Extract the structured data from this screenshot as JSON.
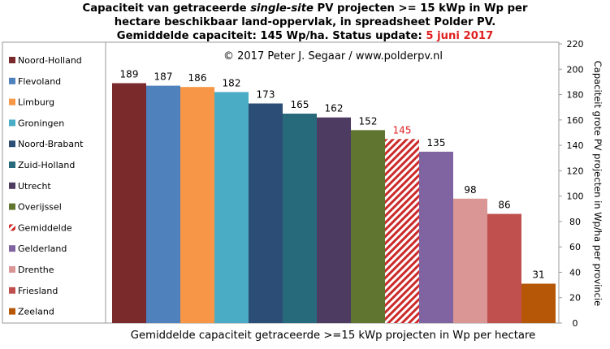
{
  "chart_data": {
    "type": "bar",
    "title": {
      "line1_pre": "Capaciteit van getraceerde ",
      "line1_em": "single-site",
      "line1_post": " PV projecten >= 15 kWp in Wp per",
      "line2": "hectare beschikbaar land-oppervlak, in spreadsheet Polder PV.",
      "line3_pre": "Gemiddelde capaciteit: 145 Wp/ha. Status update: ",
      "line3_date": "5 juni 2017"
    },
    "annotation": "© 2017 Peter J. Segaar / www.polderpv.nl",
    "xlabel": "Gemiddelde capaciteit getraceerde >=15 kWp projecten in Wp per hectare",
    "ylabel": "Capaciteit grote PV projecten in Wp/ha per provincie",
    "ylim": [
      0,
      220
    ],
    "yticks": [
      0,
      20,
      40,
      60,
      80,
      100,
      120,
      140,
      160,
      180,
      200,
      220
    ],
    "categories": [
      "Noord-Holland",
      "Flevoland",
      "Limburg",
      "Groningen",
      "Noord-Brabant",
      "Zuid-Holland",
      "Utrecht",
      "Overijssel",
      "Gemiddelde",
      "Gelderland",
      "Drenthe",
      "Friesland",
      "Zeeland"
    ],
    "values": [
      189,
      187,
      186,
      182,
      173,
      165,
      162,
      152,
      145,
      135,
      98,
      86,
      31
    ],
    "colors": [
      "#7b2a2c",
      "#4f81bd",
      "#f79646",
      "#4bacc6",
      "#2c4d75",
      "#276a7c",
      "#4e3b62",
      "#5f7530",
      "#cc2a2a",
      "#8064a2",
      "#d99694",
      "#c0504d",
      "#b65708"
    ],
    "highlight": {
      "category": "Gemiddelde",
      "pattern": "hatched",
      "label_color": "#e02020"
    },
    "legend_position": "left",
    "grid": false
  }
}
